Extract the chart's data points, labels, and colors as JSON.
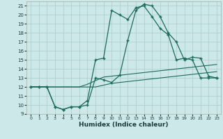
{
  "xlabel": "Humidex (Indice chaleur)",
  "bg_color": "#cce8e8",
  "grid_color": "#aacccc",
  "line_color": "#1a6b5a",
  "xlim": [
    -0.5,
    23.5
  ],
  "ylim": [
    9,
    21.5
  ],
  "xticks": [
    0,
    1,
    2,
    3,
    4,
    5,
    6,
    7,
    8,
    9,
    10,
    11,
    12,
    13,
    14,
    15,
    16,
    17,
    18,
    19,
    20,
    21,
    22,
    23
  ],
  "yticks": [
    9,
    10,
    11,
    12,
    13,
    14,
    15,
    16,
    17,
    18,
    19,
    20,
    21
  ],
  "line1_x": [
    0,
    1,
    2,
    3,
    4,
    5,
    6,
    7,
    8,
    9,
    10,
    11,
    12,
    13,
    14,
    15,
    16,
    17,
    18,
    19,
    20,
    21,
    22,
    23
  ],
  "line1_y": [
    12,
    12,
    12,
    12,
    12,
    12,
    12,
    12.3,
    12.7,
    13.1,
    13.2,
    13.3,
    13.4,
    13.5,
    13.6,
    13.7,
    13.8,
    13.9,
    14.0,
    14.1,
    14.2,
    14.3,
    14.4,
    14.5
  ],
  "line2_x": [
    0,
    1,
    2,
    3,
    4,
    5,
    6,
    7,
    8,
    9,
    10,
    11,
    12,
    13,
    14,
    15,
    16,
    17,
    18,
    19,
    20,
    21,
    22,
    23
  ],
  "line2_y": [
    12,
    12,
    12,
    12,
    12,
    12,
    12,
    12,
    12,
    12.2,
    12.4,
    12.5,
    12.6,
    12.7,
    12.8,
    12.9,
    13.0,
    13.1,
    13.2,
    13.3,
    13.4,
    13.5,
    13.6,
    13.7
  ],
  "curve1_x": [
    0,
    1,
    2,
    3,
    4,
    5,
    6,
    7,
    8,
    9,
    10,
    11,
    12,
    13,
    14,
    15,
    16,
    17,
    18,
    19,
    20,
    21,
    22,
    23
  ],
  "curve1_y": [
    12,
    12,
    12,
    9.8,
    9.5,
    9.8,
    9.8,
    10.0,
    13.0,
    12.8,
    12.5,
    13.3,
    17.2,
    20.5,
    21.2,
    21.0,
    19.8,
    18.0,
    17.0,
    15.0,
    15.3,
    15.2,
    13.2,
    13.0
  ],
  "curve2_x": [
    0,
    1,
    2,
    3,
    4,
    5,
    6,
    7,
    8,
    9,
    10,
    11,
    12,
    13,
    14,
    15,
    16,
    17,
    18,
    19,
    20,
    21,
    22,
    23
  ],
  "curve2_y": [
    12,
    12,
    12,
    9.8,
    9.5,
    9.8,
    9.8,
    10.5,
    15.0,
    15.2,
    20.5,
    20.0,
    19.5,
    20.8,
    21.0,
    19.8,
    18.5,
    17.8,
    15.0,
    15.2,
    15.0,
    13.0,
    13.0,
    13.0
  ]
}
